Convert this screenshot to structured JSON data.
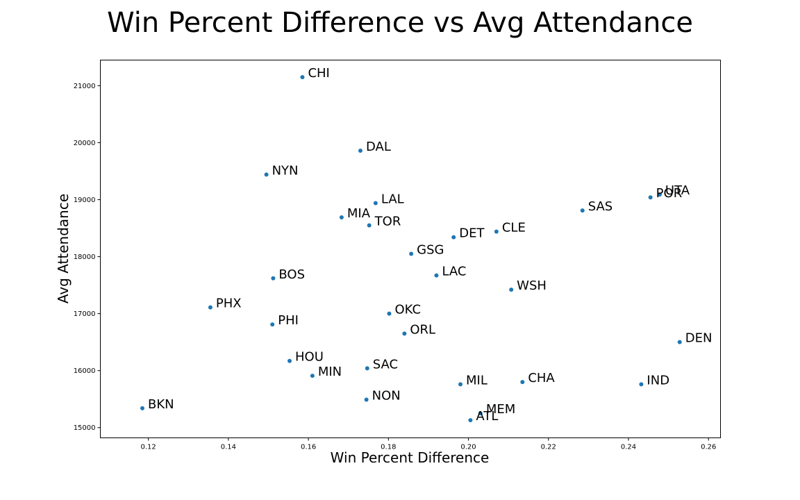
{
  "chart_data": {
    "type": "scatter",
    "title": "Win Percent Difference vs Avg Attendance",
    "xlabel": "Win Percent Difference",
    "ylabel": "Avg Attendance",
    "xlim": [
      0.108,
      0.263
    ],
    "ylim": [
      14820,
      21450
    ],
    "xticks": [
      0.12,
      0.14,
      0.16,
      0.18,
      0.2,
      0.22,
      0.24,
      0.26
    ],
    "xtick_labels": [
      "0.12",
      "0.14",
      "0.16",
      "0.18",
      "0.20",
      "0.22",
      "0.24",
      "0.26"
    ],
    "yticks": [
      15000,
      16000,
      17000,
      18000,
      19000,
      20000,
      21000
    ],
    "ytick_labels": [
      "15000",
      "16000",
      "17000",
      "18000",
      "19000",
      "20000",
      "21000"
    ],
    "grid": false,
    "marker_color": "#1f77b4",
    "points": [
      {
        "label": "CHI",
        "x": 0.1585,
        "y": 21150
      },
      {
        "label": "DAL",
        "x": 0.173,
        "y": 19860
      },
      {
        "label": "NYN",
        "x": 0.1495,
        "y": 19440
      },
      {
        "label": "UTA",
        "x": 0.2478,
        "y": 19090
      },
      {
        "label": "POR",
        "x": 0.2455,
        "y": 19040
      },
      {
        "label": "LAL",
        "x": 0.1768,
        "y": 18940
      },
      {
        "label": "SAS",
        "x": 0.2285,
        "y": 18810
      },
      {
        "label": "MIA",
        "x": 0.1683,
        "y": 18690
      },
      {
        "label": "TOR",
        "x": 0.1752,
        "y": 18550
      },
      {
        "label": "CLE",
        "x": 0.207,
        "y": 18440
      },
      {
        "label": "DET",
        "x": 0.1963,
        "y": 18340
      },
      {
        "label": "GSG",
        "x": 0.1857,
        "y": 18050
      },
      {
        "label": "LAC",
        "x": 0.192,
        "y": 17670
      },
      {
        "label": "BOS",
        "x": 0.1512,
        "y": 17620
      },
      {
        "label": "WSH",
        "x": 0.2107,
        "y": 17420
      },
      {
        "label": "PHX",
        "x": 0.1355,
        "y": 17110
      },
      {
        "label": "OKC",
        "x": 0.1802,
        "y": 17000
      },
      {
        "label": "PHI",
        "x": 0.151,
        "y": 16810
      },
      {
        "label": "ORL",
        "x": 0.184,
        "y": 16650
      },
      {
        "label": "DEN",
        "x": 0.2528,
        "y": 16500
      },
      {
        "label": "HOU",
        "x": 0.1553,
        "y": 16170
      },
      {
        "label": "SAC",
        "x": 0.1747,
        "y": 16040
      },
      {
        "label": "MIN",
        "x": 0.161,
        "y": 15910
      },
      {
        "label": "CHA",
        "x": 0.2135,
        "y": 15800
      },
      {
        "label": "MIL",
        "x": 0.198,
        "y": 15760
      },
      {
        "label": "IND",
        "x": 0.2432,
        "y": 15760
      },
      {
        "label": "NON",
        "x": 0.1745,
        "y": 15490
      },
      {
        "label": "BKN",
        "x": 0.1185,
        "y": 15340
      },
      {
        "label": "MEM",
        "x": 0.203,
        "y": 15250
      },
      {
        "label": "ATL",
        "x": 0.2005,
        "y": 15130
      }
    ]
  }
}
